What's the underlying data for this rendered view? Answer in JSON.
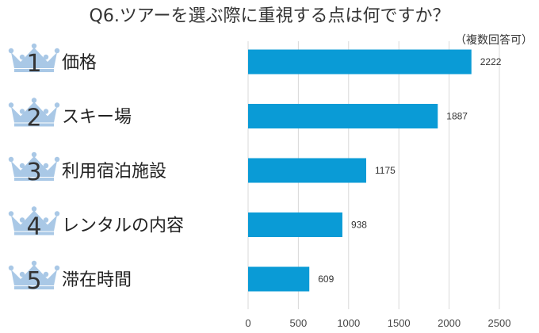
{
  "title": "Q6.ツアーを選ぶ際に重視する点は何ですか？",
  "note": "（複数回答可）",
  "colors": {
    "bar": "#0a9bd6",
    "crown": "#a9c8e6",
    "grid": "#d9d9d9"
  },
  "icons": [
    "crown-icon"
  ],
  "chart_data": {
    "type": "bar",
    "orientation": "horizontal",
    "title": "Q6.ツアーを選ぶ際に重視する点は何ですか？",
    "subtitle": "（複数回答可）",
    "categories": [
      "価格",
      "スキー場",
      "利用宿泊施設",
      "レンタルの内容",
      "滞在時間"
    ],
    "ranks": [
      "1",
      "2",
      "3",
      "4",
      "5"
    ],
    "values": [
      2222,
      1887,
      1175,
      938,
      609
    ],
    "value_labels": [
      "2222",
      "1887",
      "1175",
      "938",
      "609"
    ],
    "xlim": [
      0,
      2500
    ],
    "xticks": [
      0,
      500,
      1000,
      1500,
      2000,
      2500
    ],
    "xtick_labels": [
      "0",
      "500",
      "1000",
      "1500",
      "2000",
      "2500"
    ],
    "grid": true,
    "xlabel": "",
    "ylabel": ""
  }
}
